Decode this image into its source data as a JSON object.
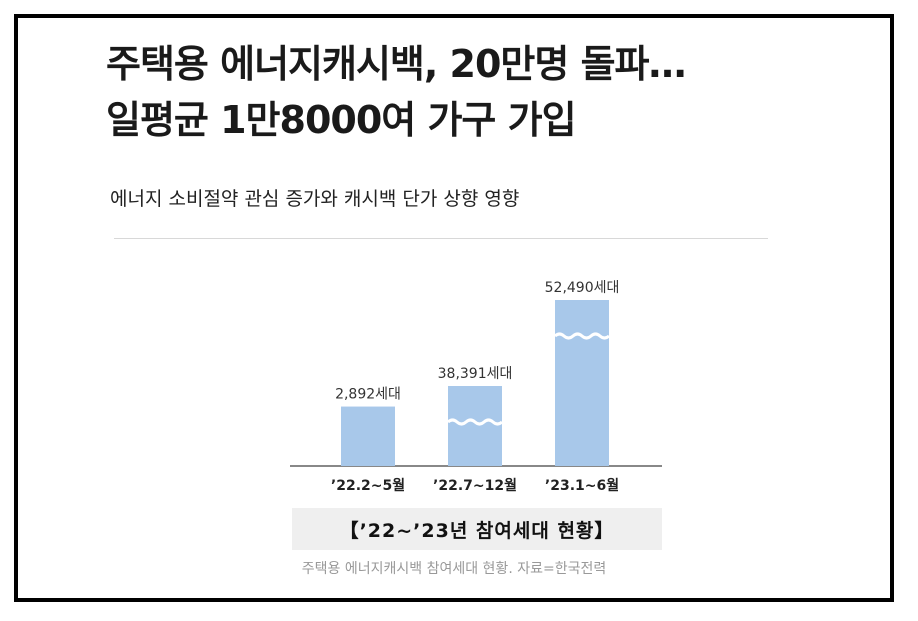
{
  "article": {
    "headline_line1": "주택용 에너지캐시백, 20만명 돌파…",
    "headline_line2": "일평균 1만8000여 가구 가입",
    "subtitle": "에너지 소비절약 관심 증가와 캐시백 단가 상향 영향",
    "source": "주택용 에너지캐시백 참여세대 현황. 자료=한국전력"
  },
  "chart_data": {
    "type": "bar",
    "title": "【’22~’23년  참여세대  현황】",
    "categories": [
      "’22.2~5월",
      "’22.7~12월",
      "’23.1~6월"
    ],
    "values": [
      2892,
      38391,
      52490
    ],
    "value_labels": [
      "2,892세대",
      "38,391세대",
      "52,490세대"
    ],
    "units": "세대",
    "axis_break": [
      false,
      true,
      true
    ],
    "bar_color": "#a8c8ea",
    "xlabel": "",
    "ylabel": "",
    "grid": false,
    "legend": "none"
  }
}
